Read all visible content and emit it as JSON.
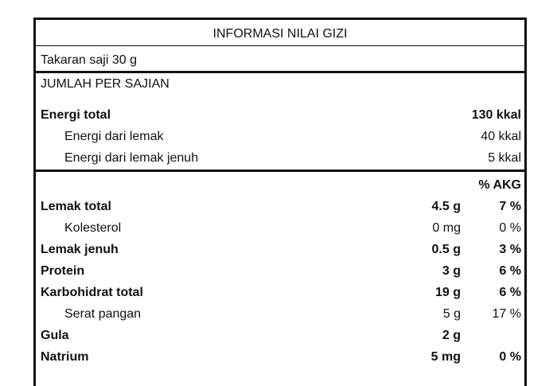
{
  "title": "INFORMASI NILAI GIZI",
  "serving": "Takaran saji 30 g",
  "section": "JUMLAH PER SAJIAN",
  "energy": [
    {
      "name": "Energi total",
      "value": "130 kkal",
      "bold": true
    },
    {
      "name": "Energi dari lemak",
      "value": "40 kkal",
      "bold": false
    },
    {
      "name": "Energi dari lemak jenuh",
      "value": "5 kkal",
      "bold": false
    }
  ],
  "akg_header": "% AKG",
  "nutrients": [
    {
      "name": "Lemak total",
      "amount": "4.5 g",
      "akg": "7 %",
      "bold": true
    },
    {
      "name": "Kolesterol",
      "amount": "0 mg",
      "akg": "0 %",
      "bold": false
    },
    {
      "name": "Lemak jenuh",
      "amount": "0.5 g",
      "akg": "3 %",
      "bold": true
    },
    {
      "name": "Protein",
      "amount": "3 g",
      "akg": "6 %",
      "bold": true
    },
    {
      "name": "Karbohidrat total",
      "amount": "19 g",
      "akg": "6 %",
      "bold": true
    },
    {
      "name": "Serat pangan",
      "amount": "5 g",
      "akg": "17 %",
      "bold": false
    },
    {
      "name": "Gula",
      "amount": "2 g",
      "akg": "",
      "bold": true
    },
    {
      "name": "Natrium",
      "amount": "5 mg",
      "akg": "0 %",
      "bold": true
    }
  ]
}
